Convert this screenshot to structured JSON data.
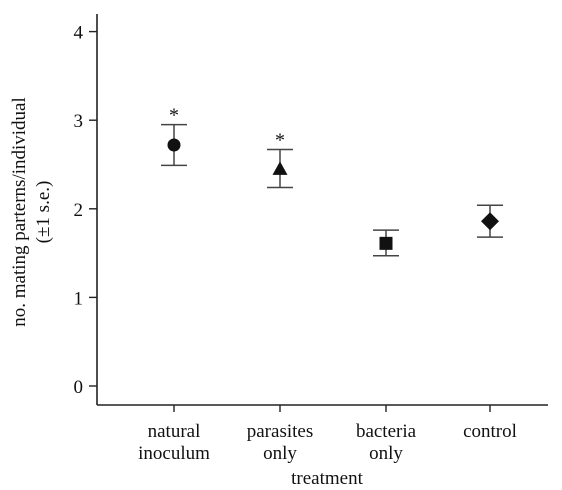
{
  "chart_data": {
    "type": "scatter",
    "title": "",
    "xlabel": "treatment",
    "ylabel": "no. mating parterns/individual",
    "ylabel_sub": "(±1 s.e.)",
    "ylim": [
      -0.2,
      4.2
    ],
    "yticks": [
      "0",
      "1",
      "2",
      "3",
      "4"
    ],
    "grid": false,
    "legend": "none",
    "categories": [
      {
        "line1": "natural",
        "line2": "inoculum"
      },
      {
        "line1": "parasites",
        "line2": "only"
      },
      {
        "line1": "bacteria",
        "line2": "only"
      },
      {
        "line1": "control",
        "line2": ""
      }
    ],
    "points": [
      {
        "category": "natural inoculum",
        "mean": 2.72,
        "se_low": 2.49,
        "se_high": 2.95,
        "marker": "circle",
        "annotation": "*"
      },
      {
        "category": "parasites only",
        "mean": 2.45,
        "se_low": 2.24,
        "se_high": 2.67,
        "marker": "triangle",
        "annotation": "*"
      },
      {
        "category": "bacteria only",
        "mean": 1.61,
        "se_low": 1.47,
        "se_high": 1.76,
        "marker": "square",
        "annotation": ""
      },
      {
        "category": "control",
        "mean": 1.86,
        "se_low": 1.68,
        "se_high": 2.04,
        "marker": "diamond",
        "annotation": ""
      }
    ],
    "colors": {
      "marker": "#111111",
      "errorbar": "#444444",
      "axis": "#222222"
    }
  }
}
